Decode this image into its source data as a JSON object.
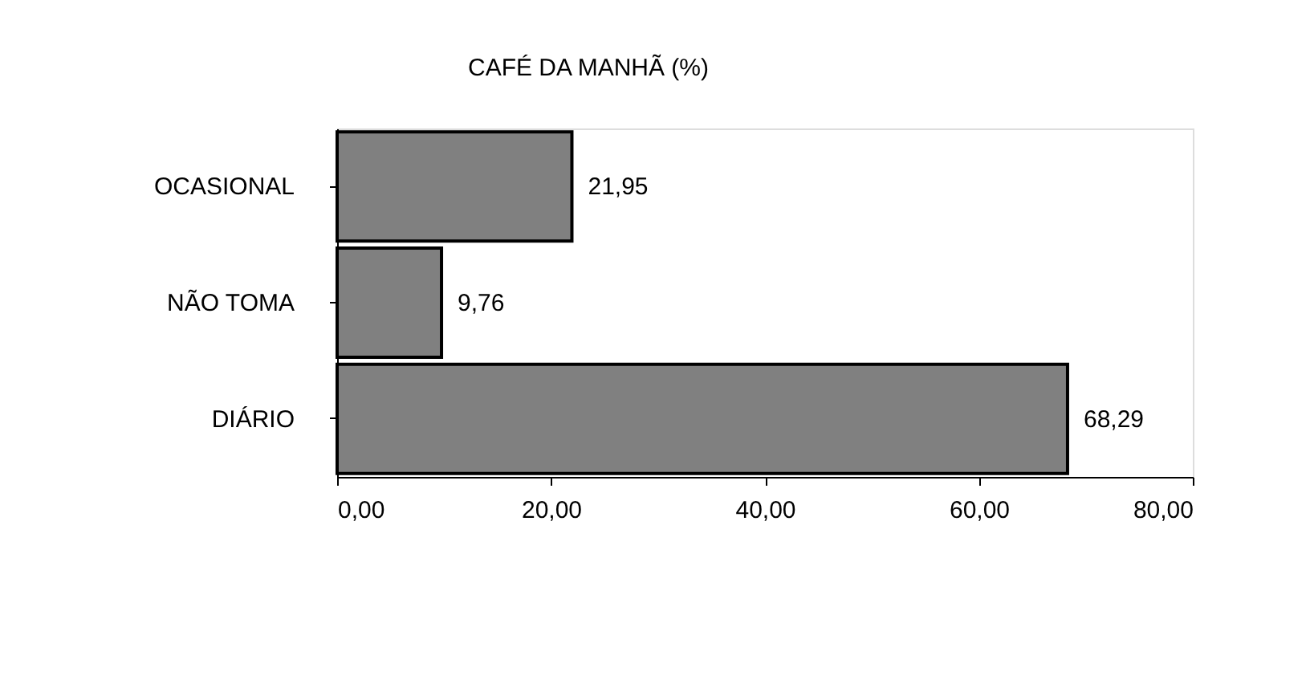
{
  "chart_data": {
    "type": "bar",
    "orientation": "horizontal",
    "title": "CAFÉ DA MANHÃ (%)",
    "categories": [
      "OCASIONAL",
      "NÃO TOMA",
      "DIÁRIO"
    ],
    "values": [
      21.95,
      9.76,
      68.29
    ],
    "value_labels": [
      "21,95",
      "9,76",
      "68,29"
    ],
    "color": "#808080",
    "xlim": [
      0,
      80
    ],
    "xticks": [
      {
        "value": 0,
        "label": "0,00"
      },
      {
        "value": 20,
        "label": "20,00"
      },
      {
        "value": 40,
        "label": "40,00"
      },
      {
        "value": 60,
        "label": "60,00"
      },
      {
        "value": 80,
        "label": "80,00"
      }
    ],
    "grid": false
  }
}
